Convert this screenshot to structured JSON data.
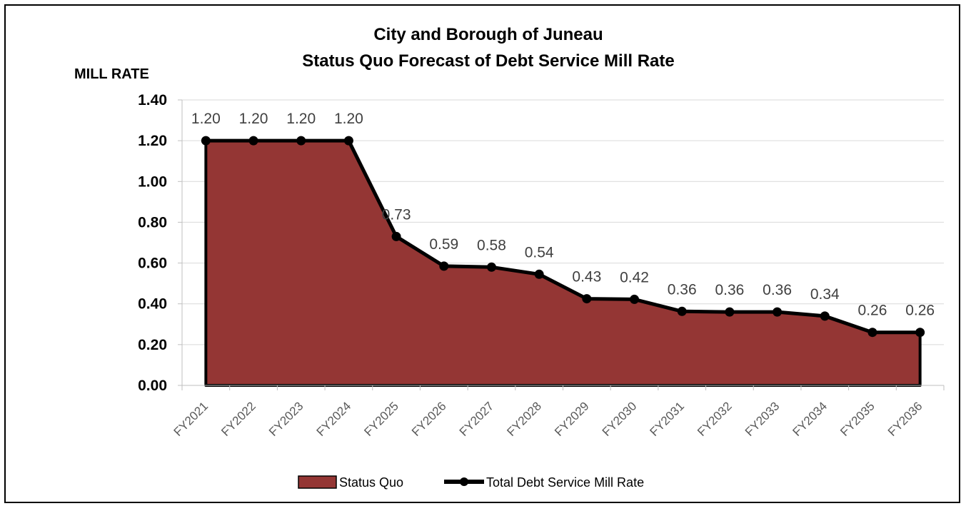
{
  "chart_data": {
    "type": "area",
    "title": "City and Borough of Juneau",
    "subtitle": "Status Quo Forecast of Debt Service Mill Rate",
    "ylabel": "MILL RATE",
    "xlabel": "",
    "ylim": [
      0,
      1.4
    ],
    "yticks": [
      "0.00",
      "0.20",
      "0.40",
      "0.60",
      "0.80",
      "1.00",
      "1.20",
      "1.40"
    ],
    "categories": [
      "FY2021",
      "FY2022",
      "FY2023",
      "FY2024",
      "FY2025",
      "FY2026",
      "FY2027",
      "FY2028",
      "FY2029",
      "FY2030",
      "FY2031",
      "FY2032",
      "FY2033",
      "FY2034",
      "FY2035",
      "FY2036"
    ],
    "series": [
      {
        "name": "Status Quo",
        "type": "area",
        "color": "#943634",
        "values": [
          1.2,
          1.2,
          1.2,
          1.2,
          0.73,
          0.585,
          0.58,
          0.545,
          0.425,
          0.422,
          0.363,
          0.36,
          0.36,
          0.34,
          0.26,
          0.26
        ]
      },
      {
        "name": "Total Debt Service Mill Rate",
        "type": "line",
        "color": "#000000",
        "values": [
          1.2,
          1.2,
          1.2,
          1.2,
          0.73,
          0.585,
          0.58,
          0.545,
          0.425,
          0.422,
          0.363,
          0.36,
          0.36,
          0.34,
          0.26,
          0.26
        ]
      }
    ],
    "data_labels": [
      "1.20",
      "1.20",
      "1.20",
      "1.20",
      "0.73",
      "0.59",
      "0.58",
      "0.54",
      "0.43",
      "0.42",
      "0.36",
      "0.36",
      "0.36",
      "0.34",
      "0.26",
      "0.26"
    ],
    "grid": true,
    "legend_position": "bottom"
  }
}
